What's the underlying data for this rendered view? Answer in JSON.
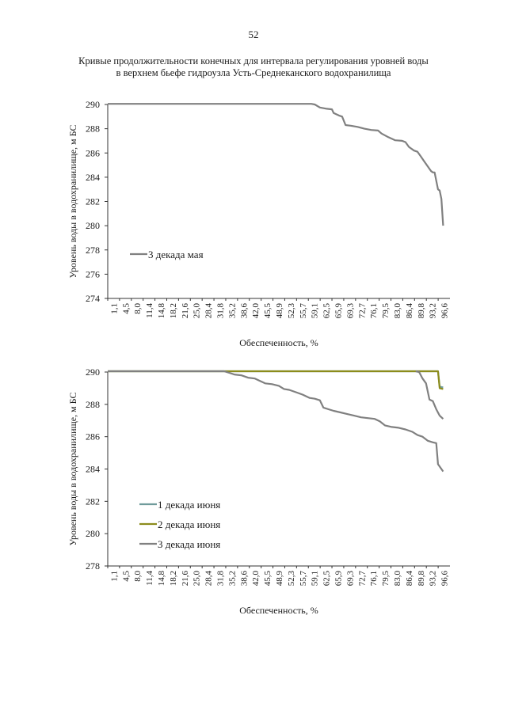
{
  "page": {
    "number": "52",
    "title_line1": "Кривые продолжительности конечных для интервала регулирования уровней воды",
    "title_line2": "в верхнем бьефе гидроузла Усть-Среднеканского водохранилища"
  },
  "colors": {
    "axis": "#333333",
    "gray_series": "#808080",
    "teal_series": "#6f9b9b",
    "olive_series": "#8c8c1c"
  },
  "chart_data": [
    {
      "type": "line",
      "title": "",
      "xlabel": "Обеспеченность, %",
      "ylabel": "Уровень воды в водохранилище, м БС",
      "ylim": [
        274,
        290
      ],
      "yticks": [
        "290",
        "288",
        "286",
        "284",
        "282",
        "280",
        "278",
        "276",
        "274"
      ],
      "xticks": [
        "1,1",
        "4,5",
        "8,0",
        "11,4",
        "14,8",
        "18,2",
        "21,6",
        "25,0",
        "28,4",
        "31,8",
        "35,2",
        "38,6",
        "42,0",
        "45,5",
        "48,9",
        "52,3",
        "55,7",
        "59,1",
        "62,5",
        "65,9",
        "69,3",
        "72,7",
        "76,1",
        "79,5",
        "83,0",
        "86,4",
        "89,8",
        "93,2",
        "96,6"
      ],
      "legend_position": "center-left",
      "series": [
        {
          "name": "3 декада мая",
          "color": "#808080",
          "x": [
            0,
            10,
            20,
            30,
            40,
            50,
            55,
            58,
            59.5,
            60.5,
            62,
            64,
            65.5,
            66,
            67.5,
            68.5,
            69.5,
            71,
            73,
            75,
            77,
            79,
            80,
            82,
            84,
            86,
            87,
            88,
            89.5,
            90.5,
            91.5,
            92.5,
            93.5,
            94.5,
            95,
            95.5,
            96.5,
            97,
            97.5,
            98
          ],
          "values": [
            290.05,
            290.05,
            290.05,
            290.05,
            290.05,
            290.05,
            290.05,
            290.05,
            290.05,
            290.0,
            289.75,
            289.65,
            289.6,
            289.3,
            289.1,
            289.0,
            288.3,
            288.25,
            288.15,
            288.0,
            287.9,
            287.85,
            287.6,
            287.3,
            287.05,
            287.0,
            286.9,
            286.5,
            286.2,
            286.1,
            285.7,
            285.3,
            284.9,
            284.5,
            284.4,
            284.4,
            283.0,
            282.9,
            282.2,
            280.0
          ]
        }
      ]
    },
    {
      "type": "line",
      "title": "",
      "xlabel": "Обеспеченность, %",
      "ylabel": "Уровень воды в водохранилище, м БС",
      "ylim": [
        278,
        290
      ],
      "yticks": [
        "290",
        "288",
        "286",
        "284",
        "282",
        "280",
        "278"
      ],
      "xticks": [
        "1,1",
        "4,5",
        "8,0",
        "11,4",
        "14,8",
        "18,2",
        "21,6",
        "25,0",
        "28,4",
        "31,8",
        "35,2",
        "38,6",
        "42,0",
        "45,5",
        "48,9",
        "52,3",
        "55,7",
        "59,1",
        "62,5",
        "65,9",
        "69,3",
        "72,7",
        "76,1",
        "79,5",
        "83,0",
        "86,4",
        "89,8",
        "93,2",
        "96,6"
      ],
      "legend_position": "lower-left",
      "series": [
        {
          "name": "1 декада июня",
          "color": "#6f9b9b",
          "x": [
            0,
            20,
            40,
            60,
            80,
            90,
            95,
            96.5,
            97,
            98
          ],
          "values": [
            290.05,
            290.05,
            290.05,
            290.05,
            290.05,
            290.05,
            290.05,
            290.05,
            289.1,
            289.05
          ]
        },
        {
          "name": "2 декада июня",
          "color": "#8c8c1c",
          "x": [
            0,
            20,
            40,
            60,
            80,
            90,
            95,
            96.5,
            97,
            98
          ],
          "values": [
            290.05,
            290.05,
            290.05,
            290.05,
            290.05,
            290.05,
            290.05,
            290.05,
            289.0,
            288.95
          ]
        },
        {
          "name": "3 декада июня",
          "color": "#808080",
          "x": [
            0,
            10,
            20,
            30,
            34,
            35.5,
            37,
            39,
            41,
            43,
            44.5,
            46,
            48,
            50,
            51.5,
            53,
            55,
            57,
            59,
            60.5,
            62,
            63,
            64.5,
            66,
            68,
            70,
            72,
            74,
            76,
            78,
            79.5,
            81,
            83,
            85,
            87,
            89,
            90.5,
            92,
            93.5,
            95,
            96,
            96.5,
            97.5,
            98
          ],
          "values": [
            290.05,
            290.05,
            290.05,
            290.05,
            290.05,
            289.95,
            289.85,
            289.8,
            289.65,
            289.6,
            289.45,
            289.3,
            289.25,
            289.15,
            288.95,
            288.9,
            288.75,
            288.6,
            288.4,
            288.35,
            288.25,
            287.8,
            287.7,
            287.6,
            287.5,
            287.4,
            287.3,
            287.2,
            287.15,
            287.1,
            286.95,
            286.7,
            286.6,
            286.55,
            286.45,
            286.3,
            286.1,
            286.0,
            285.75,
            285.65,
            285.6,
            284.3,
            284.0,
            283.85
          ]
        },
        {
          "name": "",
          "color": "#808080",
          "x": [
            90,
            91,
            92,
            93,
            94,
            95,
            96,
            97,
            98
          ],
          "values": [
            290.05,
            290.0,
            289.6,
            289.3,
            288.3,
            288.2,
            287.7,
            287.3,
            287.1
          ]
        }
      ]
    }
  ]
}
